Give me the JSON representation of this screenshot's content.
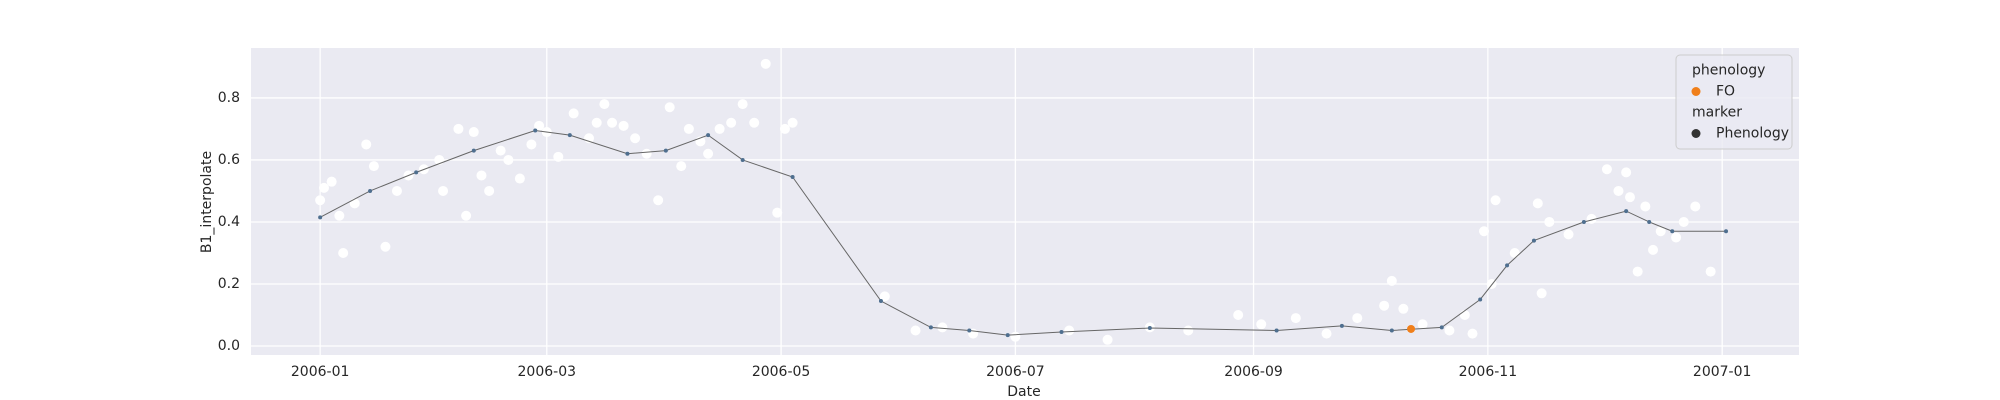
{
  "chart_data": {
    "type": "scatter",
    "xlabel": "Date",
    "ylabel": "B1_interpolate",
    "xlim": [
      "2005-12-14",
      "2007-01-21"
    ],
    "xticks": [
      {
        "value": "2006-01-01",
        "label": "2006-01"
      },
      {
        "value": "2006-03-01",
        "label": "2006-03"
      },
      {
        "value": "2006-05-01",
        "label": "2006-05"
      },
      {
        "value": "2006-07-01",
        "label": "2006-07"
      },
      {
        "value": "2006-09-01",
        "label": "2006-09"
      },
      {
        "value": "2006-11-01",
        "label": "2006-11"
      },
      {
        "value": "2007-01-01",
        "label": "2007-01"
      }
    ],
    "ylim": [
      -0.029,
      0.961
    ],
    "yticks": [
      {
        "value": 0,
        "label": "0.0"
      },
      0.2,
      0.4,
      0.6,
      0.8
    ],
    "grid": true,
    "observations": {
      "color": "#ffffff",
      "x": [
        "2006-01-01",
        "2006-01-02",
        "2006-01-04",
        "2006-01-06",
        "2006-01-07",
        "2006-01-10",
        "2006-01-13",
        "2006-01-15",
        "2006-01-18",
        "2006-01-21",
        "2006-01-24",
        "2006-01-28",
        "2006-02-01",
        "2006-02-02",
        "2006-02-06",
        "2006-02-08",
        "2006-02-10",
        "2006-02-12",
        "2006-02-14",
        "2006-02-17",
        "2006-02-19",
        "2006-02-22",
        "2006-02-25",
        "2006-02-27",
        "2006-03-01",
        "2006-03-04",
        "2006-03-08",
        "2006-03-12",
        "2006-03-14",
        "2006-03-16",
        "2006-03-18",
        "2006-03-21",
        "2006-03-24",
        "2006-03-27",
        "2006-03-30",
        "2006-04-02",
        "2006-04-05",
        "2006-04-07",
        "2006-04-10",
        "2006-04-12",
        "2006-04-15",
        "2006-04-18",
        "2006-04-21",
        "2006-04-24",
        "2006-04-27",
        "2006-04-30",
        "2006-05-02",
        "2006-05-04",
        "2006-05-28",
        "2006-06-05",
        "2006-06-12",
        "2006-06-20",
        "2006-07-01",
        "2006-07-15",
        "2006-07-25",
        "2006-08-05",
        "2006-08-15",
        "2006-08-28",
        "2006-09-03",
        "2006-09-12",
        "2006-09-20",
        "2006-09-28",
        "2006-10-05",
        "2006-10-07",
        "2006-10-10",
        "2006-10-15",
        "2006-10-22",
        "2006-10-26",
        "2006-10-28",
        "2006-10-31",
        "2006-11-02",
        "2006-11-03",
        "2006-11-08",
        "2006-11-14",
        "2006-11-15",
        "2006-11-17",
        "2006-11-22",
        "2006-11-28",
        "2006-12-02",
        "2006-12-05",
        "2006-12-07",
        "2006-12-08",
        "2006-12-10",
        "2006-12-12",
        "2006-12-14",
        "2006-12-16",
        "2006-12-20",
        "2006-12-22",
        "2006-12-25",
        "2006-12-29"
      ],
      "values": [
        0.47,
        0.51,
        0.53,
        0.42,
        0.3,
        0.46,
        0.65,
        0.58,
        0.32,
        0.5,
        0.55,
        0.57,
        0.6,
        0.5,
        0.7,
        0.42,
        0.69,
        0.55,
        0.5,
        0.63,
        0.6,
        0.54,
        0.65,
        0.71,
        0.69,
        0.61,
        0.75,
        0.67,
        0.72,
        0.78,
        0.72,
        0.71,
        0.67,
        0.62,
        0.47,
        0.77,
        0.58,
        0.7,
        0.66,
        0.62,
        0.7,
        0.72,
        0.78,
        0.72,
        0.91,
        0.43,
        0.7,
        0.72,
        0.16,
        0.05,
        0.06,
        0.04,
        0.03,
        0.05,
        0.02,
        0.06,
        0.05,
        0.1,
        0.07,
        0.09,
        0.04,
        0.09,
        0.13,
        0.21,
        0.12,
        0.07,
        0.05,
        0.1,
        0.04,
        0.37,
        0.2,
        0.47,
        0.3,
        0.46,
        0.17,
        0.4,
        0.36,
        0.41,
        0.57,
        0.5,
        0.56,
        0.48,
        0.24,
        0.45,
        0.31,
        0.37,
        0.35,
        0.4,
        0.45,
        0.24
      ]
    },
    "interpolated": {
      "color": "#666666",
      "marker_color": "#4f6f8f",
      "x": [
        "2006-01-01",
        "2006-01-14",
        "2006-01-26",
        "2006-02-10",
        "2006-02-26",
        "2006-03-07",
        "2006-03-22",
        "2006-04-01",
        "2006-04-12",
        "2006-04-21",
        "2006-05-04",
        "2006-05-27",
        "2006-06-09",
        "2006-06-19",
        "2006-06-29",
        "2006-07-13",
        "2006-08-05",
        "2006-09-07",
        "2006-09-24",
        "2006-10-07",
        "2006-10-20",
        "2006-10-30",
        "2006-11-06",
        "2006-11-13",
        "2006-11-26",
        "2006-12-07",
        "2006-12-13",
        "2006-12-19",
        "2007-01-02"
      ],
      "values": [
        0.415,
        0.5,
        0.56,
        0.63,
        0.695,
        0.68,
        0.62,
        0.63,
        0.68,
        0.6,
        0.545,
        0.145,
        0.06,
        0.05,
        0.035,
        0.045,
        0.058,
        0.05,
        0.065,
        0.05,
        0.06,
        0.15,
        0.26,
        0.34,
        0.4,
        0.435,
        0.4,
        0.37,
        0.37
      ]
    },
    "phenology": {
      "color": "#f07f1a",
      "x": [
        "2006-10-12"
      ],
      "values": [
        0.055
      ]
    },
    "legend": {
      "location": "upper right",
      "groups": [
        {
          "title": "phenology",
          "entries": [
            {
              "name": "FO",
              "color": "#f07f1a"
            }
          ]
        },
        {
          "title": "marker",
          "entries": [
            {
              "name": "Phenology",
              "color": "#333333"
            }
          ]
        }
      ]
    }
  }
}
